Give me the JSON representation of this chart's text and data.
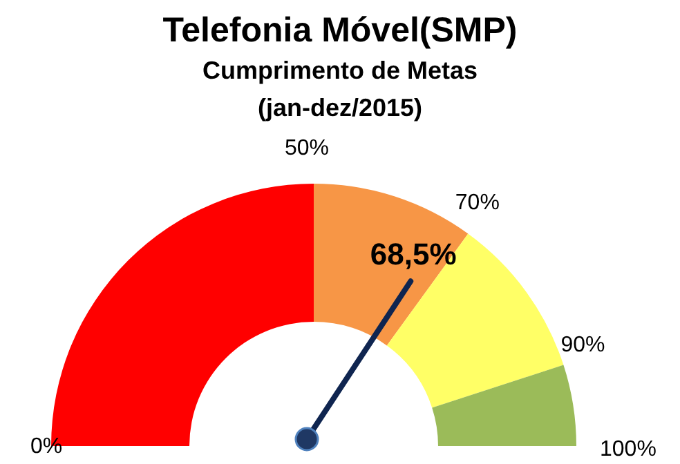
{
  "chart_data": {
    "type": "donut",
    "title": "Telefonia Móvel(SMP)",
    "subtitle": "Cumprimento de Metas\n(jan-dez/2015)",
    "categories": [
      "50%",
      "70%",
      "90%",
      "100%"
    ],
    "values": [
      50,
      20,
      20,
      10
    ],
    "colors": [
      "#ff0000",
      "#f79646",
      "#ffff66",
      "#9bbb59"
    ],
    "needle": "70%",
    "annotations": [
      "0%",
      "68,5%"
    ]
  }
}
